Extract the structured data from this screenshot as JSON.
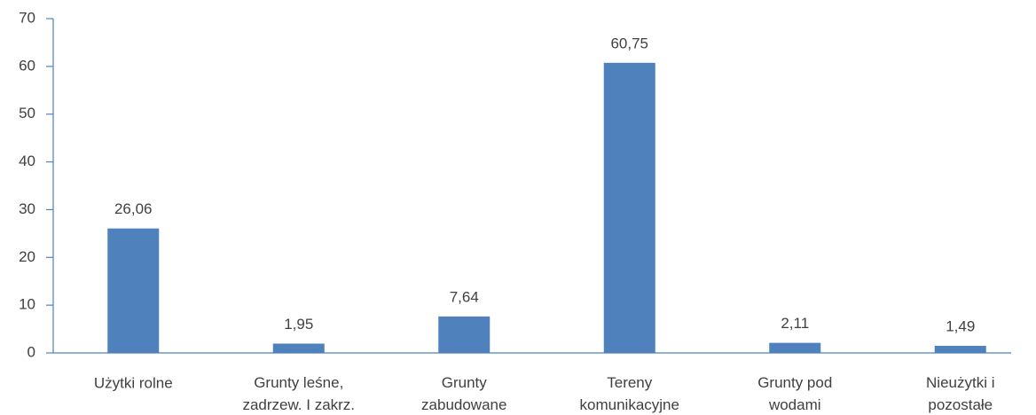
{
  "chart_data": {
    "type": "bar",
    "categories": [
      "Użytki rolne",
      "Grunty leśne,\nzadrzew. I zakrz.",
      "Grunty\nzabudowane",
      "Tereny\nkomunikacyjne",
      "Grunty pod\nwodami",
      "Nieużytki i\npozostałe"
    ],
    "values": [
      26.06,
      1.95,
      7.64,
      60.75,
      2.11,
      1.49
    ],
    "value_labels": [
      "26,06",
      "1,95",
      "7,64",
      "60,75",
      "2,11",
      "1,49"
    ],
    "color": "#4f81bd",
    "ylim": [
      0,
      70
    ],
    "yticks": [
      0,
      10,
      20,
      30,
      40,
      50,
      60,
      70
    ],
    "grid": false
  }
}
